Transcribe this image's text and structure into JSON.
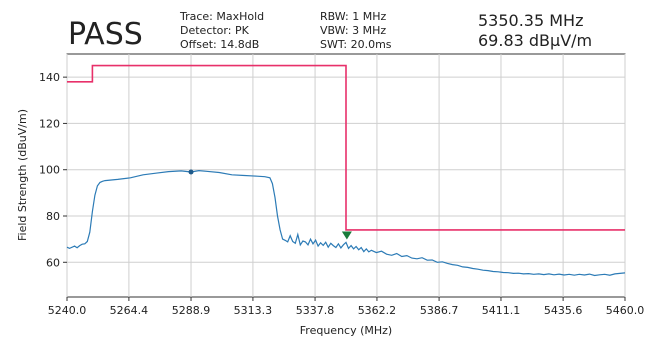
{
  "header": {
    "status": "PASS",
    "status_color": "#2e8b3a",
    "trace": "Trace: MaxHold",
    "detector": "Detector: PK",
    "offset": "Offset: 14.8dB",
    "rbw": "RBW: 1 MHz",
    "vbw": "VBW: 3 MHz",
    "swt": "SWT: 20.0ms",
    "marker_freq": "5350.35 MHz",
    "marker_level": "69.83 dBµV/m"
  },
  "chart_data": {
    "type": "line",
    "xlabel": "Frequency (MHz)",
    "ylabel": "Field Strength (dBuV/m)",
    "xlim": [
      5240.0,
      5460.0
    ],
    "ylim": [
      45,
      150
    ],
    "x_ticks": [
      5240.0,
      5264.4,
      5288.9,
      5313.3,
      5337.8,
      5362.2,
      5386.7,
      5411.1,
      5435.6,
      5460.0
    ],
    "x_tick_labels": [
      "5240.0",
      "5264.4",
      "5288.9",
      "5313.3",
      "5337.8",
      "5362.2",
      "5386.7",
      "5411.1",
      "5435.6",
      "5460.0"
    ],
    "y_ticks": [
      60,
      80,
      100,
      120,
      140
    ],
    "y_tick_labels": [
      "60",
      "80",
      "100",
      "120",
      "140"
    ],
    "grid": true,
    "colors": {
      "trace": "#2c7bb6",
      "limit": "#e8306a",
      "marker": "#1a7a3a"
    },
    "series": [
      {
        "x": [
          5240,
          5241,
          5243,
          5244,
          5245,
          5246,
          5247,
          5248,
          5249,
          5250,
          5251,
          5252,
          5253,
          5254,
          5255,
          5260,
          5265,
          5270,
          5275,
          5280,
          5285,
          5288.9,
          5292,
          5295,
          5300,
          5305,
          5310,
          5315,
          5318,
          5320,
          5321,
          5322,
          5323,
          5324,
          5325,
          5326,
          5327,
          5328,
          5329,
          5330,
          5331,
          5332,
          5333,
          5334,
          5335,
          5336,
          5337,
          5338,
          5339,
          5340,
          5341,
          5342,
          5343,
          5344,
          5345,
          5346,
          5347,
          5348,
          5349,
          5350,
          5351,
          5352,
          5353,
          5354,
          5355,
          5356,
          5357,
          5358,
          5359,
          5360,
          5362,
          5364,
          5366,
          5368,
          5370,
          5372,
          5374,
          5376,
          5378,
          5380,
          5382,
          5384,
          5386,
          5388,
          5390,
          5392,
          5394,
          5396,
          5398,
          5400,
          5402,
          5404,
          5406,
          5408,
          5410,
          5412,
          5414,
          5416,
          5418,
          5420,
          5422,
          5424,
          5426,
          5428,
          5430,
          5432,
          5434,
          5436,
          5438,
          5440,
          5442,
          5444,
          5446,
          5448,
          5450,
          5452,
          5454,
          5456,
          5458,
          5460
        ],
        "y": [
          66.5,
          66.0,
          67.0,
          66.3,
          67.2,
          67.8,
          68.0,
          69.0,
          73.0,
          82.0,
          89.0,
          93.0,
          94.5,
          95.0,
          95.3,
          95.8,
          96.5,
          97.8,
          98.5,
          99.2,
          99.5,
          99.0,
          99.6,
          99.3,
          98.8,
          97.8,
          97.5,
          97.2,
          97.0,
          96.5,
          94.0,
          88.0,
          80.0,
          74.0,
          70.0,
          69.5,
          68.8,
          71.5,
          69.0,
          68.2,
          72.0,
          67.5,
          69.2,
          68.8,
          67.5,
          70.0,
          68.0,
          69.6,
          67.0,
          68.4,
          67.3,
          68.7,
          66.5,
          68.2,
          67.2,
          66.4,
          68.0,
          66.2,
          67.6,
          68.6,
          66.0,
          67.2,
          65.8,
          66.8,
          65.4,
          66.4,
          64.6,
          65.8,
          64.5,
          65.2,
          64.2,
          64.8,
          63.5,
          63.0,
          63.8,
          62.5,
          62.9,
          61.8,
          61.5,
          62.0,
          60.9,
          61.0,
          60.0,
          60.2,
          59.5,
          59.0,
          58.7,
          58.0,
          57.8,
          57.3,
          57.0,
          56.6,
          56.4,
          56.0,
          55.9,
          55.6,
          55.5,
          55.2,
          55.3,
          55.0,
          55.1,
          54.8,
          55.0,
          54.7,
          55.0,
          54.6,
          54.9,
          54.5,
          54.8,
          54.4,
          54.8,
          54.5,
          54.9,
          54.3,
          54.6,
          54.8,
          54.4,
          55.0,
          55.2,
          55.4
        ]
      }
    ],
    "limit_line": {
      "x": [
        5240,
        5250,
        5250,
        5350,
        5350,
        5460
      ],
      "y": [
        138,
        138,
        145,
        145,
        74,
        74
      ]
    },
    "markers": [
      {
        "x": 5288.9,
        "y": 99.0,
        "shape": "dot"
      },
      {
        "x": 5350.35,
        "y": 69.83,
        "shape": "triangle"
      }
    ]
  }
}
